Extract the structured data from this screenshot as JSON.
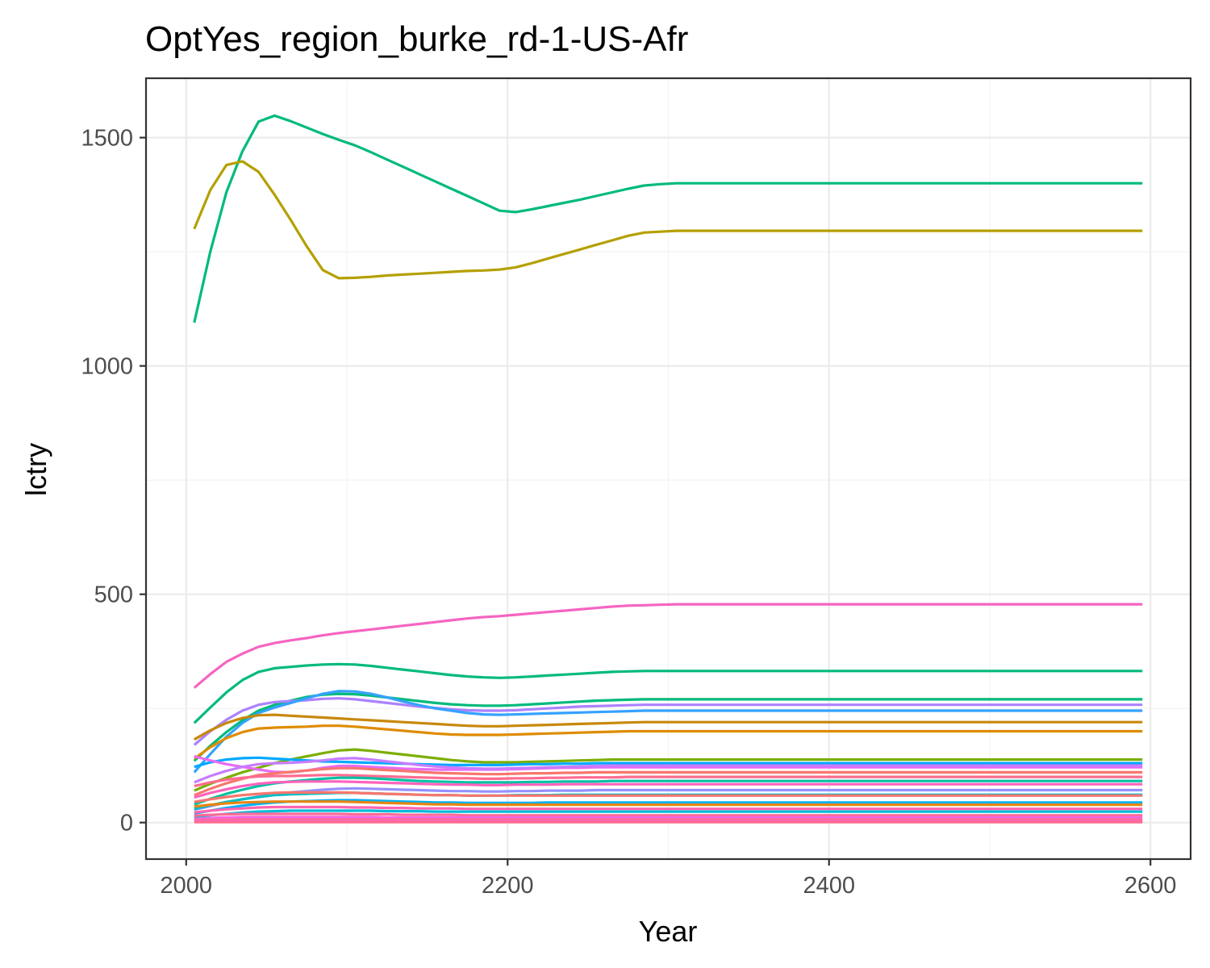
{
  "chart_data": {
    "type": "line",
    "title": "OptYes_region_burke_rd-1-US-Afr",
    "xlabel": "Year",
    "ylabel": "lctry",
    "xlim": [
      1975,
      2625
    ],
    "ylim": [
      -80,
      1630
    ],
    "x_ticks": [
      2000,
      2200,
      2400,
      2600
    ],
    "x_tick_labels": [
      "2000",
      "2200",
      "2400",
      "2600"
    ],
    "y_ticks": [
      0,
      500,
      1000,
      1500
    ],
    "y_tick_labels": [
      "0",
      "500",
      "1000",
      "1500"
    ],
    "x_minor": [
      2100,
      2300,
      2500
    ],
    "y_minor": [
      250,
      750,
      1250
    ],
    "grid": true,
    "legend": "none",
    "x": [
      2005,
      2015,
      2025,
      2035,
      2045,
      2055,
      2065,
      2075,
      2085,
      2095,
      2105,
      2115,
      2125,
      2135,
      2145,
      2155,
      2165,
      2175,
      2185,
      2195,
      2205,
      2215,
      2225,
      2235,
      2245,
      2255,
      2265,
      2275,
      2285,
      2295,
      2305,
      2595
    ],
    "series": [
      {
        "color": "#00BA7C",
        "values": [
          1095,
          1250,
          1380,
          1470,
          1535,
          1548,
          1536,
          1522,
          1508,
          1495,
          1483,
          1468,
          1452,
          1436,
          1420,
          1404,
          1388,
          1372,
          1356,
          1340,
          1337,
          1343,
          1350,
          1357,
          1364,
          1372,
          1380,
          1388,
          1395,
          1398,
          1400,
          1400
        ]
      },
      {
        "color": "#B4A000",
        "values": [
          1300,
          1385,
          1440,
          1448,
          1425,
          1375,
          1320,
          1262,
          1210,
          1192,
          1193,
          1195,
          1198,
          1200,
          1202,
          1204,
          1206,
          1208,
          1209,
          1211,
          1216,
          1225,
          1235,
          1245,
          1255,
          1265,
          1275,
          1285,
          1292,
          1294,
          1296,
          1296
        ]
      },
      {
        "color": "#F564C1",
        "values": [
          295,
          325,
          352,
          370,
          385,
          393,
          399,
          404,
          410,
          415,
          419,
          423,
          427,
          431,
          435,
          439,
          443,
          447,
          450,
          452,
          455,
          458,
          461,
          464,
          467,
          470,
          473,
          475,
          476,
          477,
          478,
          478
        ]
      },
      {
        "color": "#00BA7C",
        "values": [
          218,
          252,
          285,
          312,
          330,
          338,
          341,
          344,
          346,
          347,
          346,
          343,
          339,
          335,
          331,
          327,
          323,
          320,
          318,
          317,
          318,
          320,
          322,
          324,
          326,
          328,
          330,
          331,
          332,
          332,
          332,
          332
        ]
      },
      {
        "color": "#00BA7C",
        "values": [
          135,
          168,
          198,
          224,
          245,
          258,
          267,
          275,
          280,
          282,
          281,
          278,
          274,
          270,
          266,
          262,
          259,
          257,
          256,
          256,
          257,
          259,
          261,
          263,
          265,
          267,
          268,
          269,
          270,
          270,
          270,
          270
        ]
      },
      {
        "color": "#AB82FF",
        "values": [
          170,
          200,
          225,
          245,
          258,
          264,
          266,
          268,
          271,
          272,
          270,
          266,
          262,
          258,
          254,
          251,
          248,
          246,
          245,
          245,
          246,
          248,
          250,
          252,
          254,
          255,
          256,
          257,
          258,
          258,
          258,
          258
        ]
      },
      {
        "color": "#35A2FF",
        "values": [
          110,
          150,
          188,
          218,
          240,
          252,
          262,
          272,
          282,
          288,
          287,
          282,
          274,
          265,
          257,
          250,
          245,
          240,
          237,
          236,
          237,
          238,
          239,
          240,
          241,
          242,
          243,
          244,
          245,
          245,
          245,
          245
        ]
      },
      {
        "color": "#C8880A",
        "values": [
          182,
          202,
          218,
          229,
          235,
          236,
          234,
          232,
          230,
          228,
          226,
          224,
          222,
          220,
          218,
          216,
          214,
          212,
          211,
          211,
          212,
          213,
          214,
          215,
          216,
          217,
          218,
          219,
          220,
          220,
          220,
          220
        ]
      },
      {
        "color": "#DE8C00",
        "values": [
          140,
          165,
          185,
          198,
          206,
          208,
          209,
          210,
          212,
          212,
          210,
          207,
          204,
          201,
          198,
          195,
          193,
          192,
          192,
          192,
          193,
          194,
          195,
          196,
          197,
          198,
          199,
          200,
          200,
          200,
          200,
          200
        ]
      },
      {
        "color": "#7CAE00",
        "values": [
          70,
          85,
          98,
          110,
          120,
          130,
          138,
          145,
          152,
          158,
          160,
          157,
          153,
          149,
          145,
          141,
          137,
          134,
          132,
          132,
          132,
          133,
          134,
          135,
          136,
          137,
          138,
          138,
          138,
          138,
          138,
          138
        ]
      },
      {
        "color": "#00A9FF",
        "values": [
          122,
          132,
          138,
          141,
          142,
          140,
          138,
          136,
          134,
          133,
          132,
          131,
          130,
          129,
          128,
          127,
          126,
          126,
          126,
          126,
          127,
          128,
          128,
          129,
          129,
          130,
          130,
          130,
          130,
          130,
          130,
          130
        ]
      },
      {
        "color": "#E76BF3",
        "values": [
          145,
          136,
          128,
          122,
          116,
          111,
          110,
          114,
          120,
          124,
          124,
          122,
          120,
          118,
          117,
          116,
          116,
          116,
          116,
          116,
          117,
          118,
          119,
          120,
          120,
          121,
          121,
          121,
          121,
          121,
          121,
          121
        ]
      },
      {
        "color": "#C77CFF",
        "values": [
          88,
          102,
          113,
          122,
          128,
          130,
          131,
          133,
          136,
          140,
          141,
          138,
          134,
          130,
          126,
          123,
          121,
          119,
          118,
          118,
          119,
          120,
          121,
          122,
          123,
          124,
          125,
          125,
          125,
          125,
          125,
          125
        ]
      },
      {
        "color": "#F8766D",
        "values": [
          60,
          74,
          86,
          96,
          104,
          108,
          111,
          114,
          117,
          119,
          119,
          117,
          115,
          113,
          111,
          109,
          108,
          107,
          106,
          106,
          107,
          108,
          108,
          109,
          109,
          110,
          110,
          110,
          110,
          110,
          110,
          110
        ]
      },
      {
        "color": "#FF6C91",
        "values": [
          80,
          88,
          94,
          98,
          101,
          102,
          102,
          103,
          104,
          104,
          103,
          102,
          101,
          100,
          99,
          98,
          97,
          97,
          96,
          96,
          97,
          97,
          98,
          98,
          99,
          99,
          99,
          100,
          100,
          100,
          100,
          100
        ]
      },
      {
        "color": "#00C1A3",
        "values": [
          40,
          52,
          63,
          72,
          80,
          86,
          90,
          93,
          96,
          98,
          98,
          97,
          95,
          93,
          91,
          90,
          89,
          88,
          88,
          88,
          88,
          89,
          89,
          90,
          90,
          90,
          91,
          91,
          91,
          91,
          91,
          91
        ]
      },
      {
        "color": "#FF62BC",
        "values": [
          55,
          65,
          73,
          80,
          85,
          88,
          89,
          90,
          90,
          90,
          89,
          88,
          87,
          86,
          85,
          84,
          83,
          83,
          82,
          82,
          83,
          83,
          83,
          84,
          84,
          84,
          84,
          84,
          84,
          84,
          84,
          84
        ]
      },
      {
        "color": "#9590FF",
        "values": [
          28,
          36,
          44,
          51,
          57,
          62,
          66,
          69,
          72,
          74,
          75,
          74,
          73,
          72,
          71,
          70,
          69,
          69,
          68,
          68,
          69,
          69,
          70,
          70,
          70,
          71,
          71,
          71,
          71,
          71,
          71,
          71
        ]
      },
      {
        "color": "#00BFC4",
        "values": [
          30,
          38,
          45,
          51,
          56,
          60,
          62,
          63,
          64,
          65,
          65,
          64,
          63,
          62,
          61,
          60,
          60,
          59,
          59,
          59,
          60,
          60,
          60,
          61,
          61,
          61,
          61,
          61,
          61,
          61,
          61,
          61
        ]
      },
      {
        "color": "#F8766D",
        "values": [
          45,
          51,
          56,
          60,
          63,
          65,
          66,
          66,
          66,
          66,
          65,
          64,
          63,
          62,
          61,
          60,
          60,
          59,
          59,
          59,
          59,
          59,
          59,
          59,
          59,
          59,
          59,
          59,
          59,
          59,
          59,
          59
        ]
      },
      {
        "color": "#00B0F6",
        "values": [
          20,
          26,
          32,
          37,
          41,
          44,
          46,
          47,
          48,
          49,
          49,
          48,
          47,
          46,
          45,
          44,
          44,
          43,
          43,
          43,
          43,
          43,
          44,
          44,
          44,
          44,
          44,
          44,
          44,
          44,
          44,
          44
        ]
      },
      {
        "color": "#E68613",
        "values": [
          35,
          39,
          42,
          44,
          45,
          46,
          46,
          46,
          46,
          46,
          45,
          44,
          43,
          42,
          41,
          40,
          40,
          39,
          39,
          39,
          39,
          39,
          39,
          39,
          39,
          39,
          39,
          39,
          39,
          39,
          39,
          39
        ]
      },
      {
        "color": "#FF64B0",
        "values": [
          22,
          26,
          29,
          31,
          33,
          34,
          34,
          34,
          34,
          34,
          33,
          33,
          32,
          32,
          31,
          31,
          31,
          30,
          30,
          30,
          30,
          30,
          30,
          30,
          30,
          30,
          30,
          30,
          30,
          30,
          30,
          30
        ]
      },
      {
        "color": "#00BCD8",
        "values": [
          12,
          16,
          19,
          22,
          24,
          25,
          26,
          26,
          26,
          26,
          26,
          26,
          25,
          25,
          25,
          24,
          24,
          24,
          24,
          24,
          24,
          24,
          24,
          24,
          24,
          24,
          24,
          24,
          24,
          24,
          24,
          24
        ]
      },
      {
        "color": "#FF6A98",
        "values": [
          15,
          17,
          18,
          19,
          19,
          19,
          19,
          19,
          19,
          19,
          18,
          18,
          18,
          17,
          17,
          17,
          17,
          16,
          16,
          16,
          16,
          16,
          16,
          16,
          16,
          16,
          16,
          16,
          16,
          16,
          16,
          16
        ]
      },
      {
        "color": "#F564E3",
        "values": [
          8,
          10,
          11,
          12,
          12,
          12,
          12,
          12,
          12,
          12,
          12,
          12,
          11,
          11,
          11,
          11,
          11,
          11,
          11,
          11,
          11,
          11,
          11,
          11,
          11,
          11,
          11,
          11,
          11,
          11,
          11,
          11
        ]
      },
      {
        "color": "#FF6C91",
        "values": [
          5,
          6,
          6,
          7,
          7,
          7,
          7,
          7,
          7,
          7,
          7,
          7,
          7,
          7,
          7,
          7,
          7,
          7,
          7,
          7,
          7,
          7,
          7,
          7,
          7,
          7,
          7,
          7,
          7,
          7,
          7,
          7
        ]
      },
      {
        "color": "#FD61D1",
        "values": [
          3,
          3,
          3,
          3,
          3,
          3,
          3,
          3,
          3,
          3,
          3,
          3,
          3,
          3,
          3,
          3,
          3,
          3,
          3,
          3,
          3,
          3,
          3,
          3,
          3,
          3,
          3,
          3,
          3,
          3,
          3,
          3
        ]
      },
      {
        "color": "#FF6C91",
        "values": [
          1,
          1,
          1,
          1,
          1,
          1,
          1,
          1,
          1,
          1,
          1,
          1,
          1,
          1,
          1,
          1,
          1,
          1,
          1,
          1,
          1,
          1,
          1,
          1,
          1,
          1,
          1,
          1,
          1,
          1,
          1,
          1
        ]
      }
    ]
  }
}
